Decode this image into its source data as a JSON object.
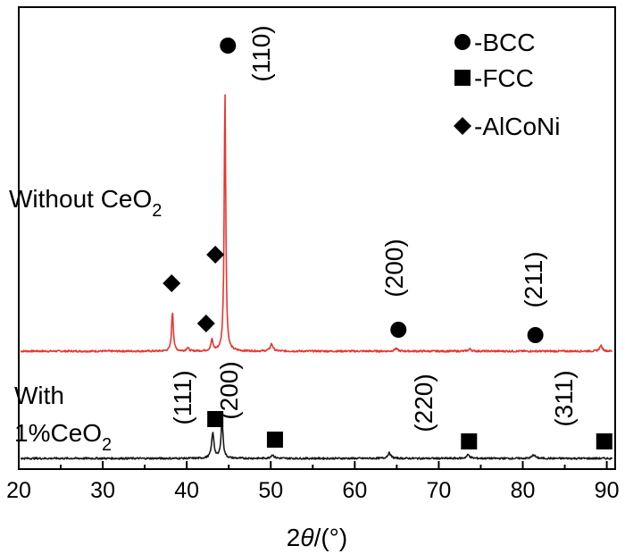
{
  "chart_data": {
    "type": "line",
    "title": "",
    "xlabel": {
      "prefix": "2",
      "italic": "θ",
      "suffix": "/(°)"
    },
    "ylabel": "",
    "xlim": [
      20,
      91
    ],
    "xticks": [
      20,
      30,
      40,
      50,
      60,
      70,
      80,
      90
    ],
    "grid": false,
    "legend_position": "top-right",
    "legend": [
      {
        "marker": "circle",
        "label": "-BCC"
      },
      {
        "marker": "square",
        "label": "-FCC"
      },
      {
        "marker": "diamond",
        "label": "-AlCoNi"
      }
    ],
    "series": [
      {
        "label_parts": [
          "Without CeO",
          "2"
        ],
        "color": "#e8362f",
        "baseline": 0,
        "noise": 0.5,
        "peaks": [
          {
            "x": 38.3,
            "height": 22,
            "width": 0.25
          },
          {
            "x": 40.1,
            "height": 2,
            "width": 0.3
          },
          {
            "x": 43.0,
            "height": 6,
            "width": 0.3
          },
          {
            "x": 44.55,
            "height": 145,
            "width": 0.22
          },
          {
            "x": 50.1,
            "height": 4,
            "width": 0.4
          },
          {
            "x": 64.9,
            "height": 1.5,
            "width": 0.4
          },
          {
            "x": 73.7,
            "height": 1.2,
            "width": 0.4
          },
          {
            "x": 89.3,
            "height": 3,
            "width": 0.4
          }
        ],
        "annotations": [
          {
            "marker": "circle",
            "x": 44.9,
            "label": "(110)"
          },
          {
            "marker": "circle",
            "x": 65.2,
            "label": "(200)"
          },
          {
            "marker": "circle",
            "x": 81.5,
            "label": "(211)"
          },
          {
            "marker": "diamond",
            "x": 38.2,
            "label": ""
          },
          {
            "marker": "diamond",
            "x": 42.3,
            "label": ""
          },
          {
            "marker": "diamond",
            "x": 43.4,
            "label": ""
          }
        ]
      },
      {
        "label_parts": [
          "With",
          "1%CeO",
          "2"
        ],
        "color": "#1a1a1a",
        "baseline": 0,
        "noise": 0.5,
        "peaks": [
          {
            "x": 43.1,
            "height": 14,
            "width": 0.35
          },
          {
            "x": 44.2,
            "height": 21,
            "width": 0.3
          },
          {
            "x": 50.2,
            "height": 2,
            "width": 0.45
          },
          {
            "x": 64.1,
            "height": 3,
            "width": 0.45
          },
          {
            "x": 73.5,
            "height": 2,
            "width": 0.45
          },
          {
            "x": 81.3,
            "height": 2,
            "width": 0.45
          }
        ],
        "annotations": [
          {
            "marker": "square",
            "x": 43.4,
            "label": "(111)"
          },
          {
            "marker": "square",
            "x": 50.5,
            "label": "(200)"
          },
          {
            "marker": "square",
            "x": 73.6,
            "label": "(220)"
          },
          {
            "marker": "square",
            "x": 89.7,
            "label": "(311)"
          }
        ]
      }
    ]
  }
}
